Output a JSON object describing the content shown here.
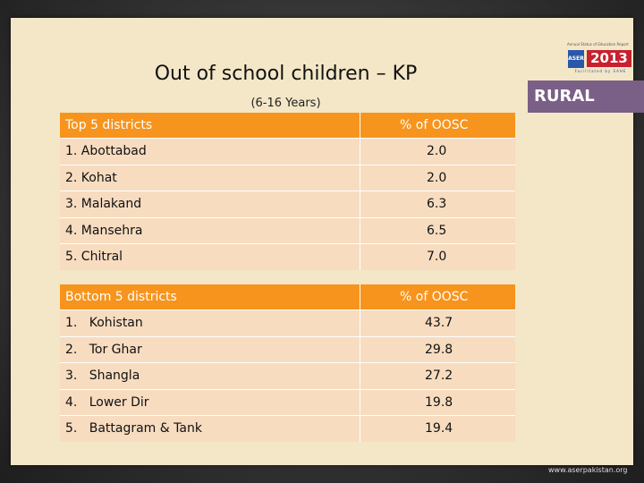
{
  "slide": {
    "title": "Out of school children – KP",
    "subtitle": "(6-16 Years)",
    "region_badge": "RURAL",
    "website": "www.aserpakistan.org"
  },
  "logo": {
    "caption": "Annual Status of Education Report",
    "org": "ASER",
    "year": "2013",
    "tagline": "Facilitated by SAHE"
  },
  "top_table": {
    "header": {
      "col1": "Top 5 districts",
      "col2": "% of OOSC"
    },
    "rows": [
      {
        "district": "1. Abottabad",
        "value": "2.0"
      },
      {
        "district": "2. Kohat",
        "value": "2.0"
      },
      {
        "district": "3. Malakand",
        "value": "6.3"
      },
      {
        "district": "4. Mansehra",
        "value": "6.5"
      },
      {
        "district": "5. Chitral",
        "value": "7.0"
      }
    ]
  },
  "bottom_table": {
    "header": {
      "col1": "Bottom 5 districts",
      "col2": "% of OOSC"
    },
    "rows": [
      {
        "district": "1.   Kohistan",
        "value": "43.7"
      },
      {
        "district": "2.   Tor Ghar",
        "value": "29.8"
      },
      {
        "district": "3.   Shangla",
        "value": "27.2"
      },
      {
        "district": "4.   Lower Dir",
        "value": "19.8"
      },
      {
        "district": "5.   Battagram & Tank",
        "value": "19.4"
      }
    ]
  },
  "colors": {
    "header_orange": "#f7941d",
    "row_peach": "#f7dcc0",
    "badge_purple": "#7a5f86",
    "slide_bg": "#f3e7c7"
  }
}
